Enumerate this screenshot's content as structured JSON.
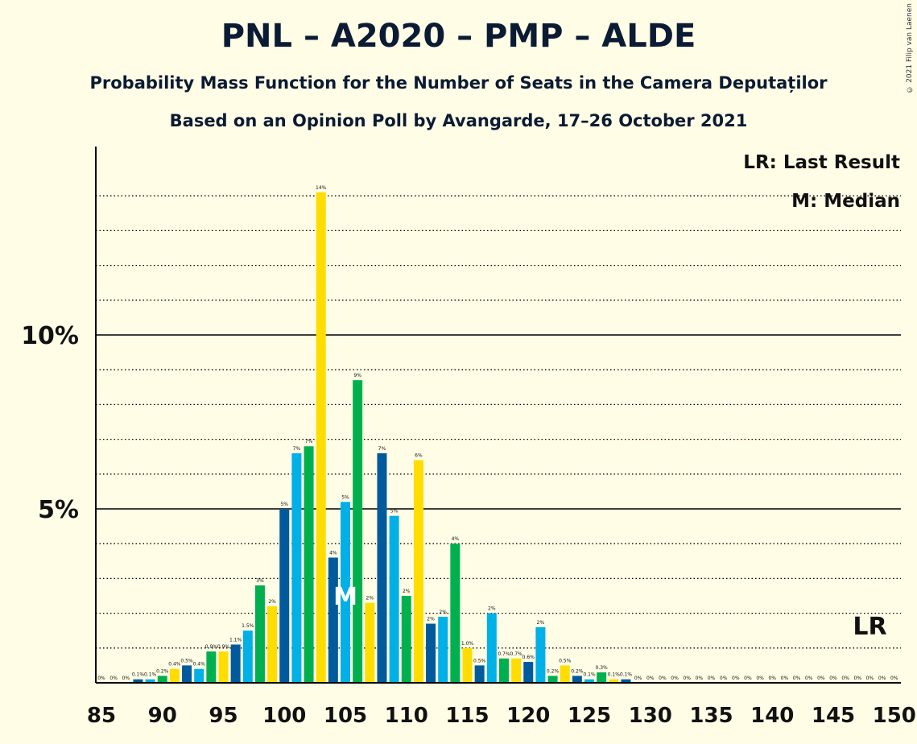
{
  "chart_data": {
    "type": "bar",
    "title": "PNL – A2020 – PMP – ALDE",
    "subtitle": "Probability Mass Function for the Number of Seats in the Camera Deputaților",
    "subtitle2": "Based on an Opinion Poll by Avangarde, 17–26 October 2021",
    "copyright": "© 2021 Filip van Laenen",
    "xlabel": "",
    "ylabel": "",
    "xlim": [
      85,
      150
    ],
    "ylim": [
      0,
      15
    ],
    "x_ticks": [
      85,
      90,
      95,
      100,
      105,
      110,
      115,
      120,
      125,
      130,
      135,
      140,
      145,
      150
    ],
    "x_tick_labels": [
      "85",
      "90",
      "95",
      "100",
      "105",
      "110",
      "115",
      "120",
      "125",
      "130",
      "135",
      "140",
      "145",
      "150"
    ],
    "y_ticks": [
      5,
      10
    ],
    "y_tick_labels": [
      "5%",
      "10%"
    ],
    "grid": "dotted every 1%, solid at 5% and 10%",
    "legend": {
      "placement": "top-right",
      "entries": [
        "LR: Last Result",
        "M: Median"
      ]
    },
    "last_result": {
      "seat": 148,
      "label": "LR"
    },
    "median": {
      "seat": 105,
      "label": "M"
    },
    "colors": [
      "#005A9C",
      "#00B0E6",
      "#00B04F",
      "#FFDD00"
    ],
    "seats": [
      85,
      86,
      87,
      88,
      89,
      90,
      91,
      92,
      93,
      94,
      95,
      96,
      97,
      98,
      99,
      100,
      101,
      102,
      103,
      104,
      105,
      106,
      107,
      108,
      109,
      110,
      111,
      112,
      113,
      114,
      115,
      116,
      117,
      118,
      119,
      120,
      121,
      122,
      123,
      124,
      125,
      126,
      127,
      128,
      129,
      130,
      131,
      132,
      133,
      134,
      135,
      136,
      137,
      138,
      139,
      140,
      141,
      142,
      143,
      144,
      145,
      146,
      147,
      148,
      149,
      150
    ],
    "values": [
      0,
      0,
      0,
      0.1,
      0.1,
      0.2,
      0.4,
      0.5,
      0.4,
      0.9,
      0.9,
      1.1,
      1.5,
      2.8,
      2.2,
      5.0,
      6.6,
      6.8,
      14.1,
      3.6,
      5.2,
      8.7,
      2.3,
      6.6,
      4.8,
      2.5,
      6.4,
      1.7,
      1.9,
      4.0,
      1.0,
      0.5,
      2.0,
      0.7,
      0.7,
      0.6,
      1.6,
      0.2,
      0.5,
      0.2,
      0.1,
      0.3,
      0.1,
      0.1,
      0,
      0,
      0,
      0,
      0,
      0,
      0,
      0,
      0,
      0,
      0,
      0,
      0,
      0,
      0,
      0,
      0,
      0,
      0,
      0,
      0,
      0
    ],
    "value_labels": [
      "0%",
      "0%",
      "0%",
      "0.1%",
      "0.1%",
      "0.2%",
      "0.4%",
      "0.5%",
      "0.4%",
      "0.9%",
      "0.9%",
      "1.1%",
      "1.5%",
      "3%",
      "2%",
      "5%",
      "7%",
      "7%",
      "14%",
      "4%",
      "5%",
      "9%",
      "2%",
      "7%",
      "5%",
      "2%",
      "6%",
      "2%",
      "2%",
      "4%",
      "1.0%",
      "0.5%",
      "2%",
      "0.7%",
      "0.7%",
      "0.6%",
      "2%",
      "0.2%",
      "0.5%",
      "0.2%",
      "0.1%",
      "0.3%",
      "0.1%",
      "0.1%",
      "0%",
      "0%",
      "0%",
      "0%",
      "0%",
      "0%",
      "0%",
      "0%",
      "0%",
      "0%",
      "0%",
      "0%",
      "0%",
      "0%",
      "0%",
      "0%",
      "0%",
      "0%",
      "0%",
      "0%",
      "0%",
      "0%"
    ]
  }
}
